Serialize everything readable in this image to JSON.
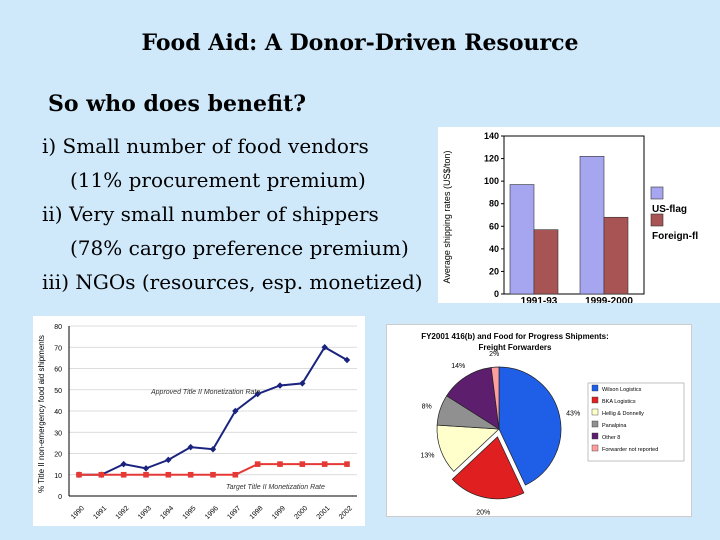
{
  "slide": {
    "title": "Food Aid: A Donor-Driven Resource",
    "subtitle": "So who does benefit?",
    "bullets": [
      "i) Small number of food vendors",
      "(11% procurement premium)",
      "ii) Very small number of shippers",
      "(78% cargo preference premium)",
      "iii) NGOs (resources, esp. monetized)"
    ],
    "colors": {
      "background": "#cfe9fb"
    }
  },
  "chart_data": [
    {
      "type": "bar",
      "title": "",
      "xlabel": "",
      "ylabel": "Average shipping rates (US$/ton)",
      "categories": [
        "1991-93",
        "1999-2000"
      ],
      "series": [
        {
          "name": "US-flag",
          "values": [
            97,
            122
          ],
          "color": "#a6a6f0"
        },
        {
          "name": "Foreign-fl",
          "values": [
            57,
            68
          ],
          "color": "#a85454"
        }
      ],
      "ylim": [
        0,
        140
      ],
      "yticks": [
        0,
        20,
        40,
        60,
        80,
        100,
        120,
        140
      ],
      "legend": "right"
    },
    {
      "type": "line",
      "ylabel": "% Title II non-emergency food aid shipments",
      "x": [
        "1990",
        "1991",
        "1992",
        "1993",
        "1994",
        "1995",
        "1996",
        "1997",
        "1998",
        "1999",
        "2000",
        "2001",
        "2002"
      ],
      "series": [
        {
          "name": "Approved Title II Monetization Rate",
          "values": [
            10,
            10,
            15,
            13,
            17,
            23,
            22,
            40,
            48,
            52,
            53,
            70,
            64
          ],
          "color": "#1a237e"
        },
        {
          "name": "Target Title II Monetization Rate",
          "values": [
            10,
            10,
            10,
            10,
            10,
            10,
            10,
            10,
            15,
            15,
            15,
            15,
            15
          ],
          "color": "#e53935"
        }
      ],
      "ylim": [
        0,
        80
      ],
      "yticks": [
        0,
        10,
        20,
        30,
        40,
        50,
        60,
        70,
        80
      ],
      "annotations": [
        "Approved Title II Monetization Rate",
        "Target Title II Monetization Rate"
      ]
    },
    {
      "type": "pie",
      "title": "FY2001 416(b) and Food for Progress Shipments: Freight Forwarders",
      "slices": [
        {
          "label": "Wilson Logistics",
          "value": 43,
          "pct": "43%",
          "color": "#1f5fe8"
        },
        {
          "label": "BKA Logistics",
          "value": 20,
          "pct": "20%",
          "color": "#e02020"
        },
        {
          "label": "Hellig & Donnelly",
          "value": 13,
          "pct": "13%",
          "color": "#ffffcc"
        },
        {
          "label": "Panalpina",
          "value": 8,
          "pct": "8%",
          "color": "#909090"
        },
        {
          "label": "Other 8",
          "value": 14,
          "pct": "14%",
          "color": "#5e1e6e"
        },
        {
          "label": "Forwarder not reported",
          "value": 2,
          "pct": "2%",
          "color": "#ff9e9e"
        }
      ],
      "legend": "right"
    }
  ]
}
